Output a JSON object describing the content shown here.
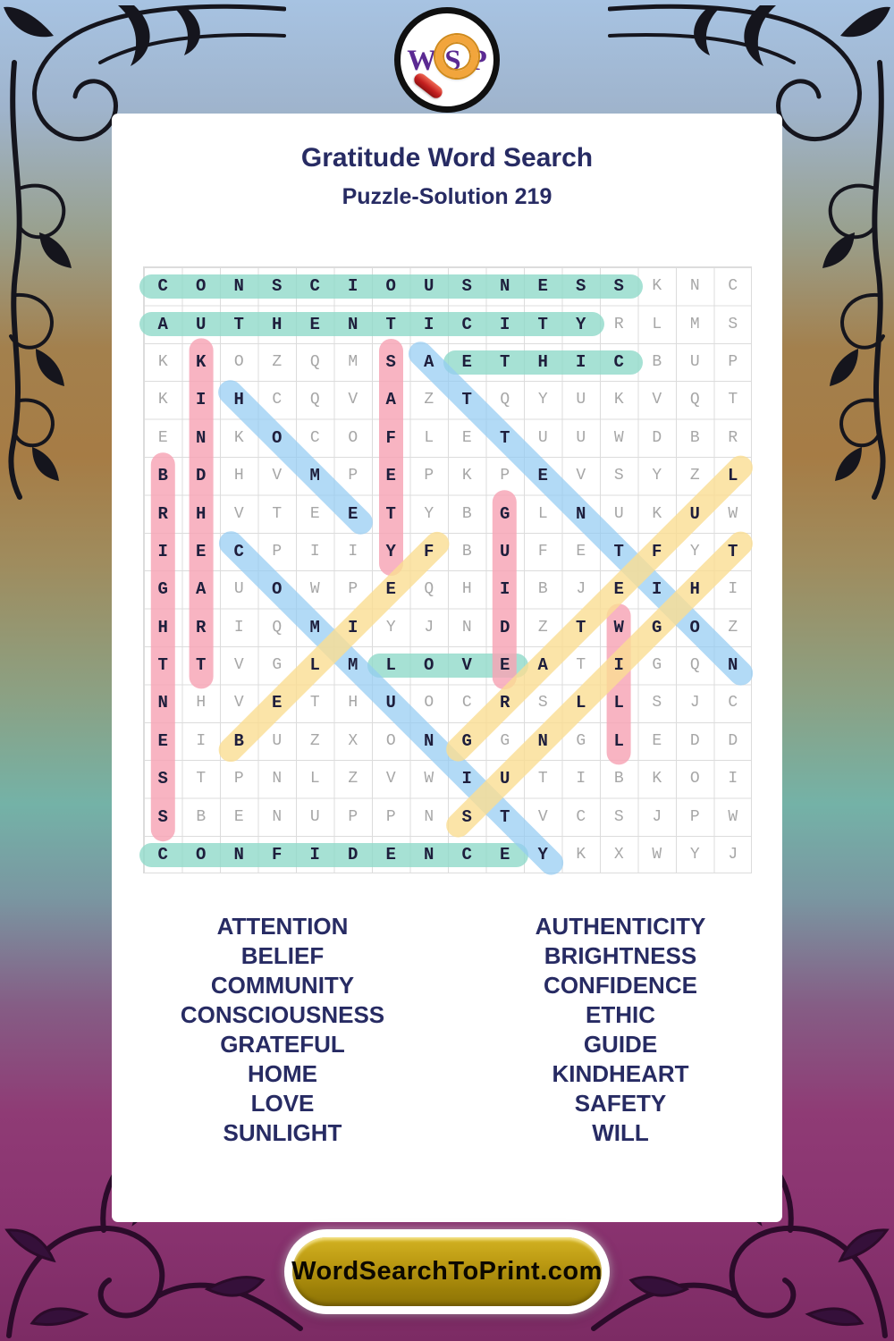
{
  "logo": {
    "letters": [
      "W",
      "S",
      "P"
    ]
  },
  "header": {
    "title": "Gratitude Word Search",
    "subtitle": "Puzzle-Solution 219"
  },
  "puzzle": {
    "rows": 16,
    "cols": 16,
    "grid": [
      "CONSCIOUSNESSKNC",
      "AUTHENTICITYRLMS",
      "KKOZQMSAETHICBUP",
      "KIHCQVAZTQYUKVQT",
      "ENKOCOFLETUUWDBR",
      "BDHVMPEPKPEVSYZL",
      "RHVTEETYBGLNUKUW",
      "IECPIIYFBUFETFYT",
      "GAUOWPEQHIBJEIHI",
      "HRIQMIYJNDZTWGOZ",
      "TTVGLMLOVEATIGQN",
      "NHVETHUOCRSLLSJC",
      "EIBUZXONGGNGLEDD",
      "STPNLZVWIUTIBKOI",
      "SBENUPPNSTVCSJPW",
      "CONFIDENCEYKXWYJ"
    ],
    "solutions": [
      {
        "word": "CONSCIOUSNESS",
        "color": "teal",
        "start": [
          1,
          1
        ],
        "end": [
          1,
          13
        ]
      },
      {
        "word": "AUTHENTICITY",
        "color": "teal",
        "start": [
          2,
          1
        ],
        "end": [
          2,
          12
        ]
      },
      {
        "word": "ETHIC",
        "color": "teal",
        "start": [
          3,
          9
        ],
        "end": [
          3,
          13
        ]
      },
      {
        "word": "LOVE",
        "color": "teal",
        "start": [
          11,
          7
        ],
        "end": [
          11,
          10
        ]
      },
      {
        "word": "CONFIDENCE",
        "color": "teal",
        "start": [
          16,
          1
        ],
        "end": [
          16,
          10
        ]
      },
      {
        "word": "KINDHEART",
        "color": "pink",
        "start": [
          3,
          2
        ],
        "end": [
          11,
          2
        ]
      },
      {
        "word": "SAFETY",
        "color": "pink",
        "start": [
          3,
          7
        ],
        "end": [
          8,
          7
        ]
      },
      {
        "word": "BRIGHTNESS",
        "color": "pink",
        "start": [
          6,
          1
        ],
        "end": [
          15,
          1
        ]
      },
      {
        "word": "GUIDE",
        "color": "pink",
        "start": [
          7,
          10
        ],
        "end": [
          11,
          10
        ]
      },
      {
        "word": "WILL",
        "color": "pink",
        "start": [
          10,
          13
        ],
        "end": [
          13,
          13
        ]
      },
      {
        "word": "HOME",
        "color": "blue",
        "start": [
          4,
          3
        ],
        "end": [
          7,
          6
        ]
      },
      {
        "word": "ATTENTION",
        "color": "blue",
        "start": [
          3,
          8
        ],
        "end": [
          11,
          16
        ]
      },
      {
        "word": "COMMUNITY",
        "color": "blue",
        "start": [
          8,
          3
        ],
        "end": [
          16,
          11
        ]
      },
      {
        "word": "BELIEF",
        "color": "yellow",
        "start": [
          13,
          3
        ],
        "end": [
          8,
          8
        ]
      },
      {
        "word": "GRATEFUL",
        "color": "yellow",
        "start": [
          13,
          9
        ],
        "end": [
          6,
          16
        ]
      },
      {
        "word": "SUNLIGHT",
        "color": "yellow",
        "start": [
          15,
          9
        ],
        "end": [
          8,
          16
        ]
      }
    ]
  },
  "word_list": {
    "left": [
      "ATTENTION",
      "BELIEF",
      "COMMUNITY",
      "CONSCIOUSNESS",
      "GRATEFUL",
      "HOME",
      "LOVE",
      "SUNLIGHT"
    ],
    "right": [
      "AUTHENTICITY",
      "BRIGHTNESS",
      "CONFIDENCE",
      "ETHIC",
      "GUIDE",
      "KINDHEART",
      "SAFETY",
      "WILL"
    ]
  },
  "footer": {
    "site": "WordSearchToPrint.com"
  },
  "colors": {
    "navy": "#272b63",
    "letter-solved": "#1e1e3c",
    "letter-filler": "#a7a7a7",
    "grid-line": "#dcdcdc",
    "teal": "rgba(144,218,201,0.80)",
    "pink": "rgba(247,164,180,0.82)",
    "blue": "rgba(148,204,242,0.72)",
    "yellow": "rgba(250,221,146,0.80)",
    "gold": "#b8960f",
    "logo-purple": "#5b2a92",
    "logo-orange": "#f2a53c",
    "logo-red": "#c42020"
  }
}
